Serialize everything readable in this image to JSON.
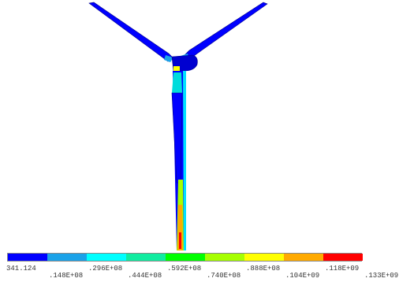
{
  "legend": {
    "labels": [
      "341.124",
      ".148E+08",
      ".296E+08",
      ".444E+08",
      ".592E+08",
      ".740E+08",
      ".888E+08",
      ".104E+09",
      ".118E+09",
      ".133E+09"
    ],
    "colors": [
      "#0000ff",
      "#1aa2e8",
      "#00ffff",
      "#10eca0",
      "#00ff00",
      "#a6ff00",
      "#ffff00",
      "#ffaa00",
      "#ff0000"
    ]
  }
}
